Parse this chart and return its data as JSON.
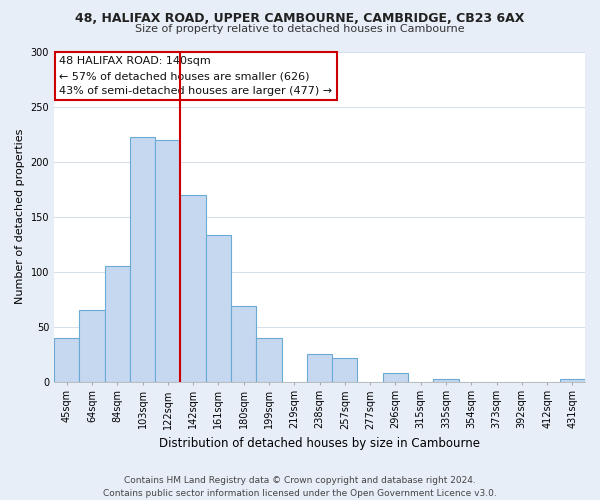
{
  "title1": "48, HALIFAX ROAD, UPPER CAMBOURNE, CAMBRIDGE, CB23 6AX",
  "title2": "Size of property relative to detached houses in Cambourne",
  "xlabel": "Distribution of detached houses by size in Cambourne",
  "ylabel": "Number of detached properties",
  "categories": [
    "45sqm",
    "64sqm",
    "84sqm",
    "103sqm",
    "122sqm",
    "142sqm",
    "161sqm",
    "180sqm",
    "199sqm",
    "219sqm",
    "238sqm",
    "257sqm",
    "277sqm",
    "296sqm",
    "315sqm",
    "335sqm",
    "354sqm",
    "373sqm",
    "392sqm",
    "412sqm",
    "431sqm"
  ],
  "values": [
    40,
    65,
    105,
    222,
    220,
    170,
    133,
    69,
    40,
    0,
    25,
    21,
    0,
    8,
    0,
    2,
    0,
    0,
    0,
    0,
    2
  ],
  "bar_color": "#c5d8f0",
  "bar_edge_color": "#6aaad4",
  "vline_color": "#cc0000",
  "annotation_title": "48 HALIFAX ROAD: 140sqm",
  "annotation_line1": "← 57% of detached houses are smaller (626)",
  "annotation_line2": "43% of semi-detached houses are larger (477) →",
  "annotation_box_color": "#cc0000",
  "ylim": [
    0,
    300
  ],
  "yticks": [
    0,
    50,
    100,
    150,
    200,
    250,
    300
  ],
  "footer1": "Contains HM Land Registry data © Crown copyright and database right 2024.",
  "footer2": "Contains public sector information licensed under the Open Government Licence v3.0.",
  "bg_color": "#e8eef8",
  "plot_bg_color": "#ffffff",
  "title1_fontsize": 9,
  "title2_fontsize": 8,
  "ylabel_fontsize": 8,
  "xlabel_fontsize": 8.5,
  "tick_fontsize": 7,
  "footer_fontsize": 6.5,
  "annot_fontsize": 8
}
